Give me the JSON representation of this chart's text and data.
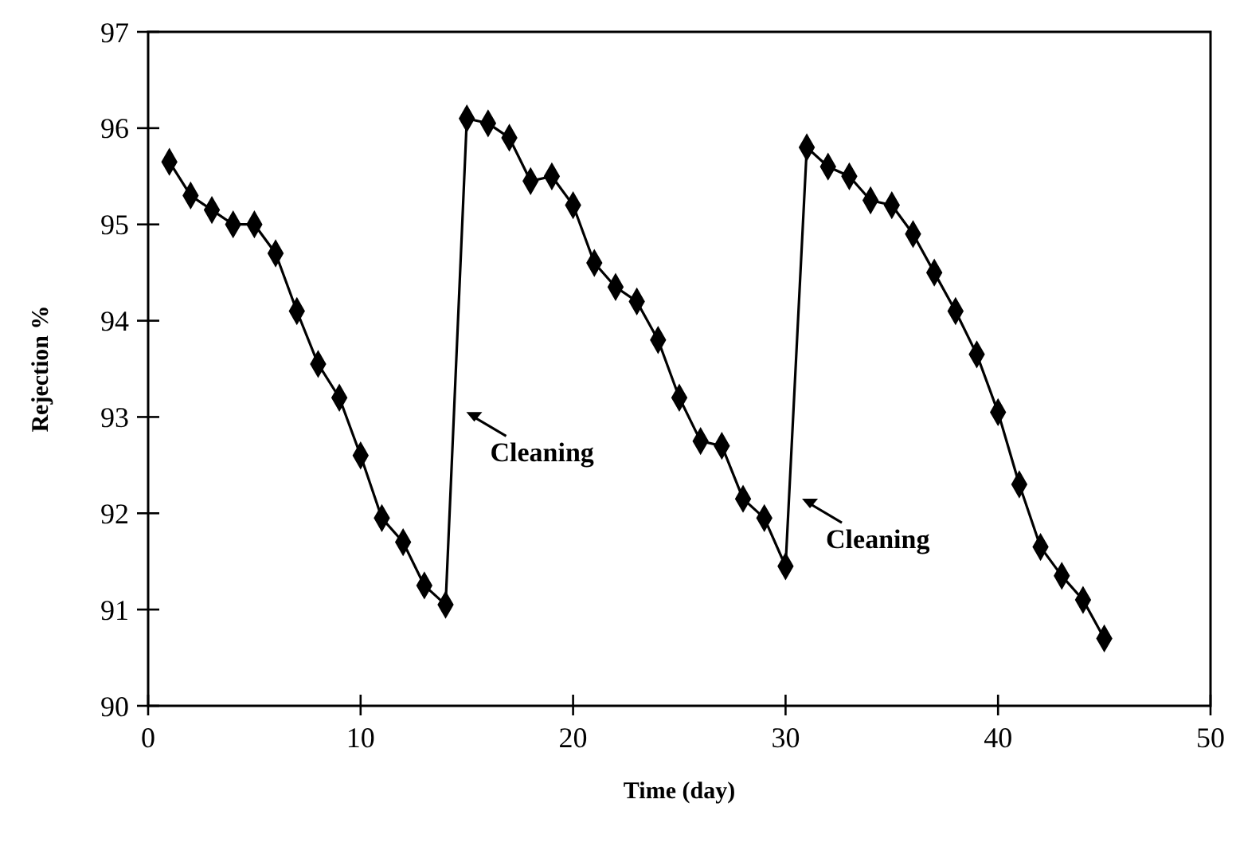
{
  "chart_data": {
    "type": "line",
    "xlabel": "Time (day)",
    "ylabel": "Rejection %",
    "xlim": [
      0,
      50
    ],
    "xticks": [
      0,
      10,
      20,
      30,
      40,
      50
    ],
    "ylim": [
      90,
      97
    ],
    "yticks": [
      90,
      91,
      92,
      93,
      94,
      95,
      96,
      97
    ],
    "grid": false,
    "marker": "diamond",
    "line_style": "solid",
    "series": [
      {
        "color": "#000000",
        "x": [
          1,
          2,
          3,
          4,
          5,
          6,
          7,
          8,
          9,
          10,
          11,
          12,
          13,
          14,
          15,
          16,
          17,
          18,
          19,
          20,
          21,
          22,
          23,
          24,
          25,
          26,
          27,
          28,
          29,
          30,
          31,
          32,
          33,
          34,
          35,
          36,
          37,
          38,
          39,
          40,
          41,
          42,
          43,
          44,
          45
        ],
        "values": [
          95.65,
          95.3,
          95.15,
          95.0,
          95.0,
          94.7,
          94.1,
          93.55,
          93.2,
          92.6,
          91.95,
          91.7,
          91.25,
          91.05,
          96.1,
          96.05,
          95.9,
          95.45,
          95.5,
          95.2,
          94.6,
          94.35,
          94.2,
          93.8,
          93.2,
          92.75,
          92.7,
          92.15,
          91.95,
          91.45,
          95.8,
          95.6,
          95.5,
          95.25,
          95.2,
          94.9,
          94.5,
          94.1,
          93.65,
          93.05,
          92.3,
          91.65,
          91.35,
          91.1,
          90.7
        ]
      }
    ],
    "annotations": [
      {
        "text": "Cleaning",
        "x": 14.6,
        "y": 93.1
      },
      {
        "text": "Cleaning",
        "x": 30.4,
        "y": 92.2
      }
    ]
  }
}
